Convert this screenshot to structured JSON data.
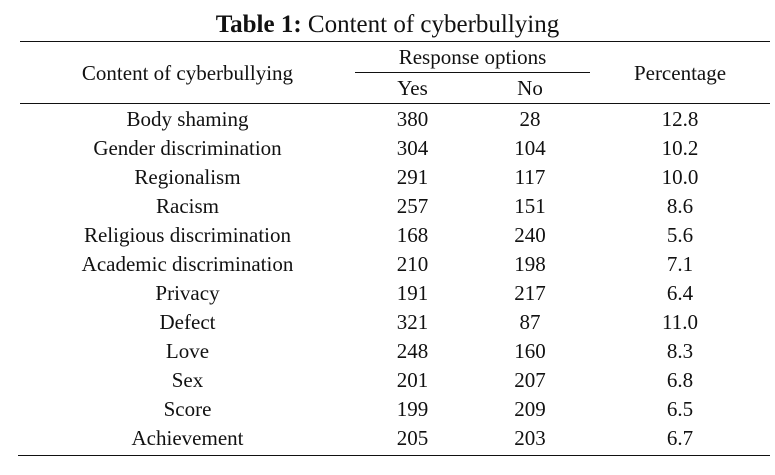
{
  "caption": {
    "label": "Table 1:",
    "text": " Content of cyberbullying"
  },
  "headers": {
    "content": "Content of cyberbullying",
    "response_options": "Response options",
    "yes": "Yes",
    "no": "No",
    "percentage": "Percentage"
  },
  "rows": [
    {
      "content": "Body shaming",
      "yes": "380",
      "no": "28",
      "percentage": "12.8"
    },
    {
      "content": "Gender discrimination",
      "yes": "304",
      "no": "104",
      "percentage": "10.2"
    },
    {
      "content": "Regionalism",
      "yes": "291",
      "no": "117",
      "percentage": "10.0"
    },
    {
      "content": "Racism",
      "yes": "257",
      "no": "151",
      "percentage": "8.6"
    },
    {
      "content": "Religious discrimination",
      "yes": "168",
      "no": "240",
      "percentage": "5.6"
    },
    {
      "content": "Academic discrimination",
      "yes": "210",
      "no": "198",
      "percentage": "7.1"
    },
    {
      "content": "Privacy",
      "yes": "191",
      "no": "217",
      "percentage": "6.4"
    },
    {
      "content": "Defect",
      "yes": "321",
      "no": "87",
      "percentage": "11.0"
    },
    {
      "content": "Love",
      "yes": "248",
      "no": "160",
      "percentage": "8.3"
    },
    {
      "content": "Sex",
      "yes": "201",
      "no": "207",
      "percentage": "6.8"
    },
    {
      "content": "Score",
      "yes": "199",
      "no": "209",
      "percentage": "6.5"
    },
    {
      "content": "Achievement",
      "yes": "205",
      "no": "203",
      "percentage": "6.7"
    }
  ]
}
